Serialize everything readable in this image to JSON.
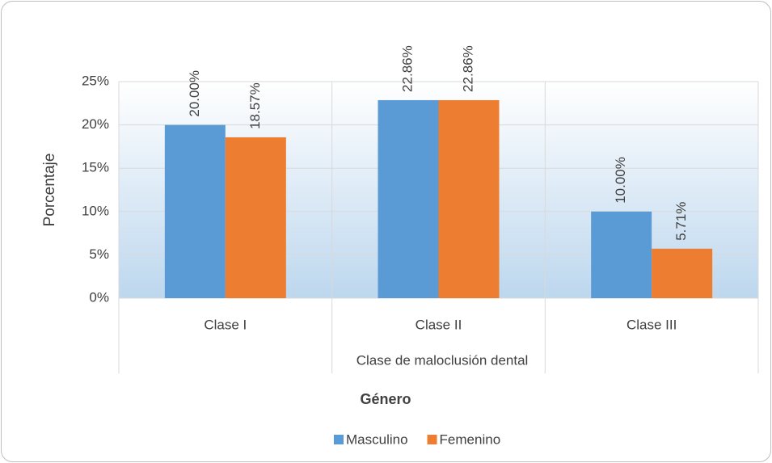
{
  "chart_data": {
    "type": "bar",
    "y_label": "Porcentaje",
    "x_label": "Clase de maloclusión dental",
    "legend_title": "Género",
    "categories": [
      "Clase I",
      "Clase II",
      "Clase III"
    ],
    "series": [
      {
        "name": "Masculino",
        "color": "#5b9bd5",
        "values": [
          20,
          22.86,
          10
        ],
        "value_labels": [
          "20.00%",
          "22.86%",
          "10.00%"
        ]
      },
      {
        "name": "Femenino",
        "color": "#ed7d31",
        "values": [
          18.57,
          22.86,
          5.71
        ],
        "value_labels": [
          "18.57%",
          "22.86%",
          "5.71%"
        ]
      }
    ],
    "ylim": [
      0,
      25
    ],
    "yticks": [
      {
        "value": 0,
        "label": "0%"
      },
      {
        "value": 5,
        "label": "5%"
      },
      {
        "value": 10,
        "label": "10%"
      },
      {
        "value": 15,
        "label": "15%"
      },
      {
        "value": 20,
        "label": "20%"
      },
      {
        "value": 25,
        "label": "25%"
      }
    ],
    "grid": true,
    "legend": "bottom"
  }
}
